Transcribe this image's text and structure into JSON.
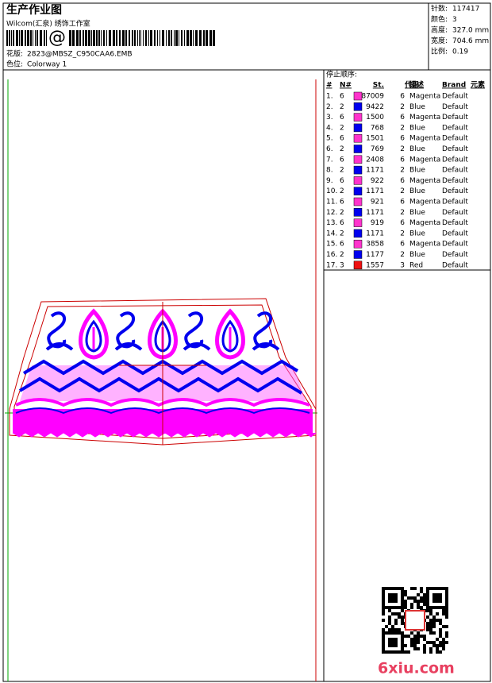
{
  "header": {
    "title": "生产作业图",
    "subtitle": "Wilcom(汇泉) 绣饰工作室",
    "barcode_text": "@",
    "design_file": {
      "label": "花版:",
      "value": "2823@MBSZ_C950CAA6.EMB"
    },
    "colorway": {
      "label": "色位:",
      "value": "Colorway 1"
    }
  },
  "info": [
    {
      "label": "针数:",
      "value": "117417"
    },
    {
      "label": "颜色:",
      "value": "3"
    },
    {
      "label": "高度:",
      "value": "327.0 mm"
    },
    {
      "label": "宽度:",
      "value": "704.6 mm"
    },
    {
      "label": "比例:",
      "value": "0.19"
    }
  ],
  "stop_sequence": {
    "title": "停止顺序:",
    "columns": [
      "#",
      "N#",
      "St.",
      "代码",
      "描述",
      "Brand",
      "元素"
    ],
    "rows": [
      {
        "index": "1.",
        "needle": "6",
        "color": "#ff33cc",
        "stitches": "87009",
        "code": "6",
        "description": "Magenta",
        "brand": "Default"
      },
      {
        "index": "2.",
        "needle": "2",
        "color": "#0000ee",
        "stitches": "9422",
        "code": "2",
        "description": "Blue",
        "brand": "Default"
      },
      {
        "index": "3.",
        "needle": "6",
        "color": "#ff33cc",
        "stitches": "1500",
        "code": "6",
        "description": "Magenta",
        "brand": "Default"
      },
      {
        "index": "4.",
        "needle": "2",
        "color": "#0000ee",
        "stitches": "768",
        "code": "2",
        "description": "Blue",
        "brand": "Default"
      },
      {
        "index": "5.",
        "needle": "6",
        "color": "#ff33cc",
        "stitches": "1501",
        "code": "6",
        "description": "Magenta",
        "brand": "Default"
      },
      {
        "index": "6.",
        "needle": "2",
        "color": "#0000ee",
        "stitches": "769",
        "code": "2",
        "description": "Blue",
        "brand": "Default"
      },
      {
        "index": "7.",
        "needle": "6",
        "color": "#ff33cc",
        "stitches": "2408",
        "code": "6",
        "description": "Magenta",
        "brand": "Default"
      },
      {
        "index": "8.",
        "needle": "2",
        "color": "#0000ee",
        "stitches": "1171",
        "code": "2",
        "description": "Blue",
        "brand": "Default"
      },
      {
        "index": "9.",
        "needle": "6",
        "color": "#ff33cc",
        "stitches": "922",
        "code": "6",
        "description": "Magenta",
        "brand": "Default"
      },
      {
        "index": "10.",
        "needle": "2",
        "color": "#0000ee",
        "stitches": "1171",
        "code": "2",
        "description": "Blue",
        "brand": "Default"
      },
      {
        "index": "11.",
        "needle": "6",
        "color": "#ff33cc",
        "stitches": "921",
        "code": "6",
        "description": "Magenta",
        "brand": "Default"
      },
      {
        "index": "12.",
        "needle": "2",
        "color": "#0000ee",
        "stitches": "1171",
        "code": "2",
        "description": "Blue",
        "brand": "Default"
      },
      {
        "index": "13.",
        "needle": "6",
        "color": "#ff33cc",
        "stitches": "919",
        "code": "6",
        "description": "Magenta",
        "brand": "Default"
      },
      {
        "index": "14.",
        "needle": "2",
        "color": "#0000ee",
        "stitches": "1171",
        "code": "2",
        "description": "Blue",
        "brand": "Default"
      },
      {
        "index": "15.",
        "needle": "6",
        "color": "#ff33cc",
        "stitches": "3858",
        "code": "6",
        "description": "Magenta",
        "brand": "Default"
      },
      {
        "index": "16.",
        "needle": "2",
        "color": "#0000ee",
        "stitches": "1177",
        "code": "2",
        "description": "Blue",
        "brand": "Default"
      },
      {
        "index": "17.",
        "needle": "3",
        "color": "#ee1111",
        "stitches": "1557",
        "code": "3",
        "description": "Red",
        "brand": "Default"
      }
    ]
  },
  "watermark": "6xiu.com"
}
